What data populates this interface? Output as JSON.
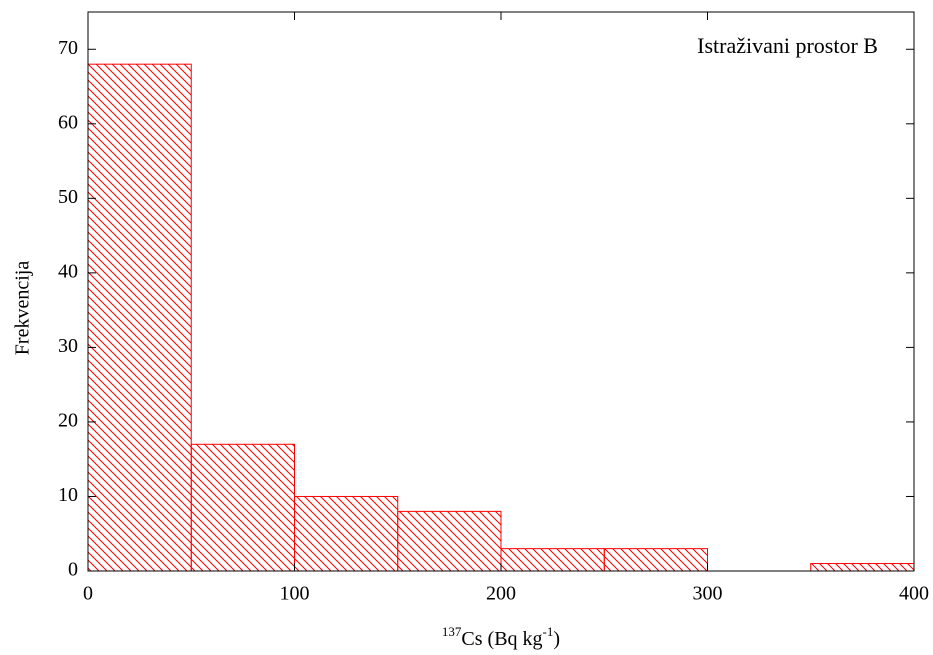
{
  "chart_data": {
    "type": "histogram",
    "annotation": "Istraživani prostor B",
    "ylabel": "Frekvencija",
    "xlabel": {
      "isotope": "137",
      "unit": "Cs (Bq kg",
      "exponent": "-1",
      "close": ")"
    },
    "bins": [
      0,
      50,
      100,
      150,
      200,
      250,
      300,
      350,
      400
    ],
    "values": [
      68,
      17,
      10,
      8,
      3,
      3,
      0,
      1
    ],
    "color": "#ff0000",
    "xlim": [
      0,
      400
    ],
    "xticks": [
      0,
      100,
      200,
      300,
      400
    ],
    "ylim": [
      0,
      75
    ],
    "yticks": [
      0,
      10,
      20,
      30,
      40,
      50,
      60,
      70
    ]
  }
}
